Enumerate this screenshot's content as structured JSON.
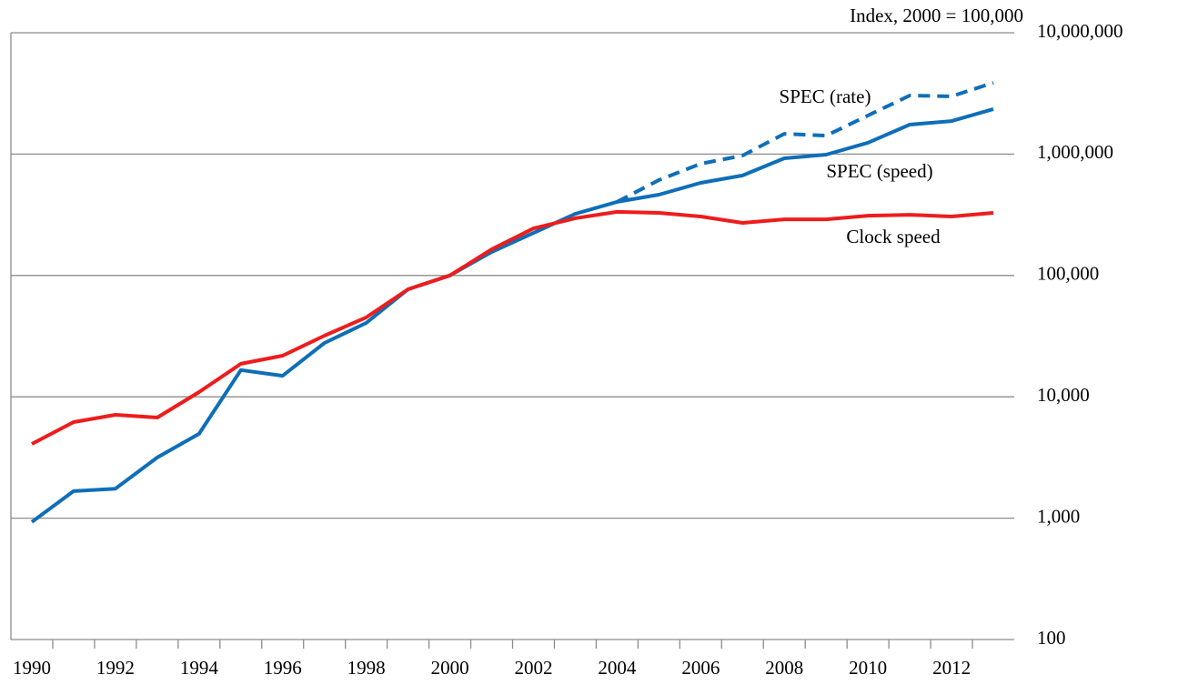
{
  "chart_data": {
    "type": "line",
    "y_axis_label": "Index, 2000 = 100,000",
    "categories": [
      "1990",
      null,
      "1992",
      null,
      "1994",
      null,
      "1996",
      null,
      "1998",
      null,
      "2000",
      null,
      "2002",
      null,
      "2004",
      null,
      "2006",
      null,
      "2008",
      null,
      "2010",
      null,
      "2012",
      null
    ],
    "series": [
      {
        "name": "SPEC (rate)",
        "color": "#0e6eb8",
        "style": "dashed",
        "values": [
          null,
          null,
          null,
          null,
          null,
          null,
          null,
          null,
          null,
          null,
          null,
          null,
          null,
          null,
          404000,
          611000,
          833000,
          973000,
          1470000,
          1420000,
          2080000,
          3040000,
          2990000,
          3870000
        ]
      },
      {
        "name": "SPEC (speed)",
        "color": "#0e6eb8",
        "style": "solid",
        "values": [
          930,
          1670,
          1750,
          3160,
          4950,
          16600,
          14900,
          27800,
          40600,
          76900,
          100000,
          156000,
          224000,
          322000,
          404000,
          463000,
          580000,
          666000,
          924000,
          990000,
          1240000,
          1750000,
          1870000,
          2350000
        ]
      },
      {
        "name": "Clock speed",
        "color": "#ee1c1c",
        "style": "solid",
        "values": [
          4090,
          6190,
          7110,
          6750,
          10940,
          18700,
          21800,
          31900,
          45100,
          76900,
          100000,
          164000,
          244000,
          296000,
          334000,
          328000,
          306000,
          271000,
          290000,
          290000,
          311000,
          316000,
          306000,
          328000
        ]
      }
    ],
    "log_scale": true,
    "ylim": [
      100,
      10000000
    ],
    "yticks": [
      100,
      {
        "value": 1000,
        "label": "1,000"
      },
      {
        "value": 10000,
        "label": "10,000"
      },
      {
        "value": 100000,
        "label": "100,000"
      },
      {
        "value": 1000000,
        "label": "1,000,000"
      },
      {
        "value": 10000000,
        "label": "10,000,000"
      }
    ],
    "grid": true
  }
}
